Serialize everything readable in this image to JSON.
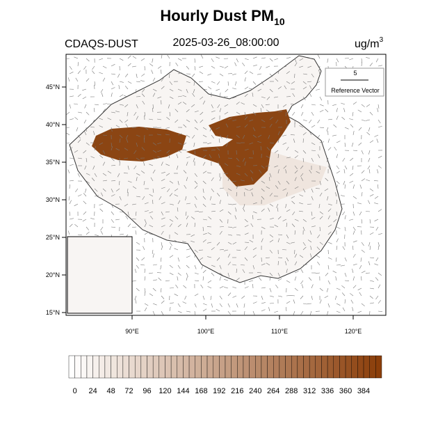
{
  "header": {
    "title": "Hourly Dust PM",
    "title_sub": "10",
    "left": "CDAQS-DUST",
    "center": "2025-03-26_08:00:00",
    "unit": "ug/m",
    "unit_sup": "3"
  },
  "reference_vector": {
    "magnitude": "5",
    "label": "Reference Vector"
  },
  "lat_labels": [
    "45°N",
    "40°N",
    "35°N",
    "30°N",
    "25°N",
    "20°N",
    "15°N"
  ],
  "lon_labels": [
    "90°E",
    "100°E",
    "110°E",
    "120°E"
  ],
  "colorbar": {
    "labels": [
      "0",
      "24",
      "48",
      "72",
      "96",
      "120",
      "144",
      "168",
      "192",
      "216",
      "240",
      "264",
      "288",
      "312",
      "336",
      "360",
      "384"
    ]
  }
}
